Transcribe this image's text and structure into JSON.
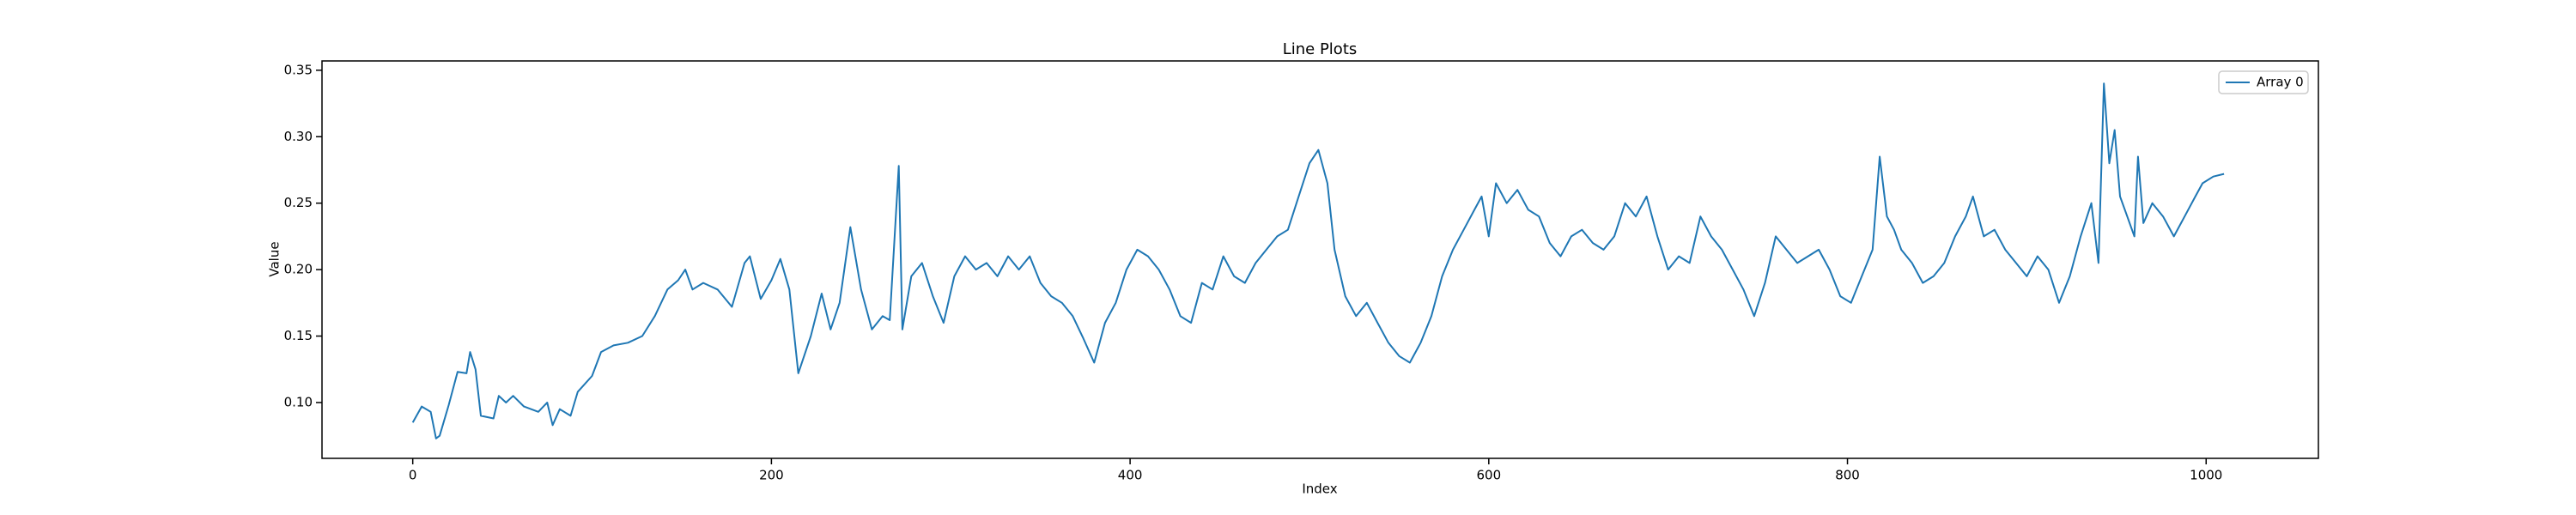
{
  "chart_data": {
    "type": "line",
    "title": "Line Plots",
    "xlabel": "Index",
    "ylabel": "Value",
    "x": [
      0,
      5,
      10,
      13,
      15,
      20,
      25,
      30,
      32,
      35,
      38,
      45,
      48,
      52,
      56,
      62,
      70,
      75,
      78,
      82,
      88,
      92,
      100,
      105,
      112,
      120,
      128,
      135,
      142,
      148,
      152,
      156,
      162,
      170,
      178,
      185,
      188,
      194,
      200,
      205,
      210,
      215,
      222,
      228,
      233,
      238,
      244,
      250,
      256,
      262,
      266,
      271,
      273,
      278,
      284,
      290,
      296,
      302,
      308,
      314,
      320,
      326,
      332,
      338,
      344,
      350,
      356,
      362,
      368,
      374,
      380,
      386,
      392,
      398,
      404,
      410,
      416,
      422,
      428,
      434,
      440,
      446,
      452,
      458,
      464,
      470,
      476,
      482,
      488,
      494,
      500,
      505,
      510,
      514,
      520,
      526,
      532,
      538,
      544,
      550,
      556,
      562,
      568,
      574,
      580,
      586,
      592,
      596,
      600,
      604,
      610,
      616,
      622,
      628,
      634,
      640,
      646,
      652,
      658,
      664,
      670,
      676,
      682,
      688,
      694,
      700,
      706,
      712,
      718,
      724,
      730,
      736,
      742,
      748,
      754,
      760,
      766,
      772,
      778,
      784,
      790,
      796,
      802,
      808,
      814,
      818,
      822,
      826,
      830,
      836,
      842,
      848,
      854,
      860,
      866,
      870,
      876,
      882,
      888,
      894,
      900,
      906,
      912,
      918,
      924,
      930,
      936,
      940,
      943,
      946,
      949,
      952,
      956,
      960,
      962,
      965,
      970,
      976,
      982,
      988,
      994,
      998,
      1004,
      1010
    ],
    "series": [
      {
        "name": "Array 0",
        "color": "#1f77b4",
        "values": [
          0.085,
          0.097,
          0.093,
          0.073,
          0.075,
          0.098,
          0.123,
          0.122,
          0.138,
          0.125,
          0.09,
          0.088,
          0.105,
          0.1,
          0.105,
          0.097,
          0.093,
          0.1,
          0.083,
          0.095,
          0.09,
          0.108,
          0.12,
          0.138,
          0.143,
          0.145,
          0.15,
          0.165,
          0.185,
          0.192,
          0.2,
          0.185,
          0.19,
          0.185,
          0.172,
          0.205,
          0.21,
          0.178,
          0.192,
          0.208,
          0.185,
          0.122,
          0.15,
          0.182,
          0.155,
          0.175,
          0.232,
          0.185,
          0.155,
          0.165,
          0.162,
          0.278,
          0.155,
          0.195,
          0.205,
          0.18,
          0.16,
          0.195,
          0.21,
          0.2,
          0.205,
          0.195,
          0.21,
          0.2,
          0.21,
          0.19,
          0.18,
          0.175,
          0.165,
          0.148,
          0.13,
          0.16,
          0.175,
          0.2,
          0.215,
          0.21,
          0.2,
          0.185,
          0.165,
          0.16,
          0.19,
          0.185,
          0.21,
          0.195,
          0.19,
          0.205,
          0.215,
          0.225,
          0.23,
          0.255,
          0.28,
          0.29,
          0.265,
          0.215,
          0.18,
          0.165,
          0.175,
          0.16,
          0.145,
          0.135,
          0.13,
          0.145,
          0.165,
          0.195,
          0.215,
          0.23,
          0.245,
          0.255,
          0.225,
          0.265,
          0.25,
          0.26,
          0.245,
          0.24,
          0.22,
          0.21,
          0.225,
          0.23,
          0.22,
          0.215,
          0.225,
          0.25,
          0.24,
          0.255,
          0.225,
          0.2,
          0.21,
          0.205,
          0.24,
          0.225,
          0.215,
          0.2,
          0.185,
          0.165,
          0.19,
          0.225,
          0.215,
          0.205,
          0.21,
          0.215,
          0.2,
          0.18,
          0.175,
          0.195,
          0.215,
          0.285,
          0.24,
          0.23,
          0.215,
          0.205,
          0.19,
          0.195,
          0.205,
          0.225,
          0.24,
          0.255,
          0.225,
          0.23,
          0.215,
          0.205,
          0.195,
          0.21,
          0.2,
          0.175,
          0.195,
          0.225,
          0.25,
          0.205,
          0.34,
          0.28,
          0.305,
          0.255,
          0.24,
          0.225,
          0.285,
          0.235,
          0.25,
          0.24,
          0.225,
          0.24,
          0.255,
          0.265,
          0.27,
          0.272
        ]
      }
    ],
    "xlim": [
      -50.6,
      1062.6
    ],
    "ylim": [
      0.058,
      0.357
    ],
    "xticks": [
      0,
      200,
      400,
      600,
      800,
      1000
    ],
    "yticks": [
      {
        "value": 0.1,
        "label": "0.10"
      },
      {
        "value": 0.15,
        "label": "0.15"
      },
      {
        "value": 0.2,
        "label": "0.20"
      },
      {
        "value": 0.25,
        "label": "0.25"
      },
      {
        "value": 0.3,
        "label": "0.30"
      },
      {
        "value": 0.35,
        "label": "0.35"
      }
    ],
    "legend": "upper right"
  }
}
